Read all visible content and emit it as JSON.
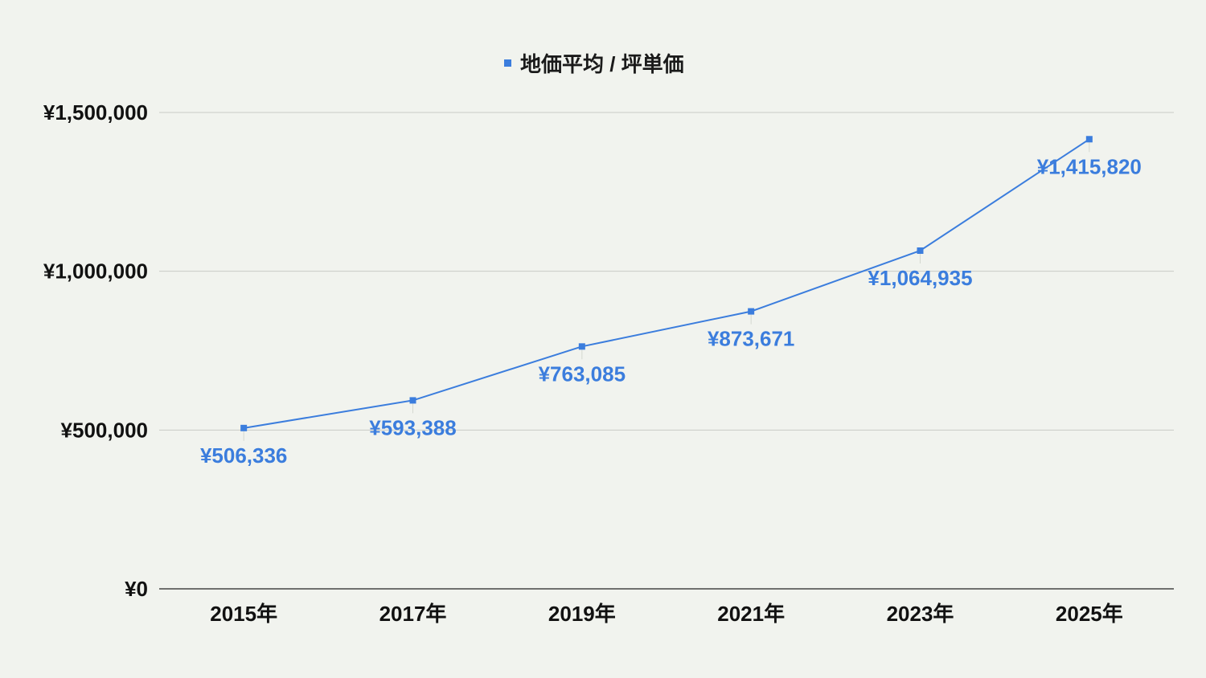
{
  "chart_data": {
    "type": "line",
    "title": "",
    "legend": {
      "position": "top",
      "entries": [
        "地価平均 / 坪単価"
      ]
    },
    "xlabel": "",
    "ylabel": "",
    "categories": [
      "2015年",
      "2017年",
      "2019年",
      "2021年",
      "2023年",
      "2025年"
    ],
    "series": [
      {
        "name": "地価平均 / 坪単価",
        "values": [
          506336,
          593388,
          763085,
          873671,
          1064935,
          1415820
        ],
        "data_labels": [
          "¥506,336",
          "¥593,388",
          "¥763,085",
          "¥873,671",
          "¥1,064,935",
          "¥1,415,820"
        ],
        "color": "#3b7ddd"
      }
    ],
    "ylim": [
      0,
      1500000
    ],
    "yticks": [
      0,
      500000,
      1000000,
      1500000
    ],
    "ytick_labels": [
      "¥0",
      "¥500,000",
      "¥1,000,000",
      "¥1,500,000"
    ],
    "grid": true
  },
  "colors": {
    "background": "#f1f3ee",
    "series": "#3b7ddd",
    "gridline": "#c9cbc6",
    "axis": "#444444"
  }
}
